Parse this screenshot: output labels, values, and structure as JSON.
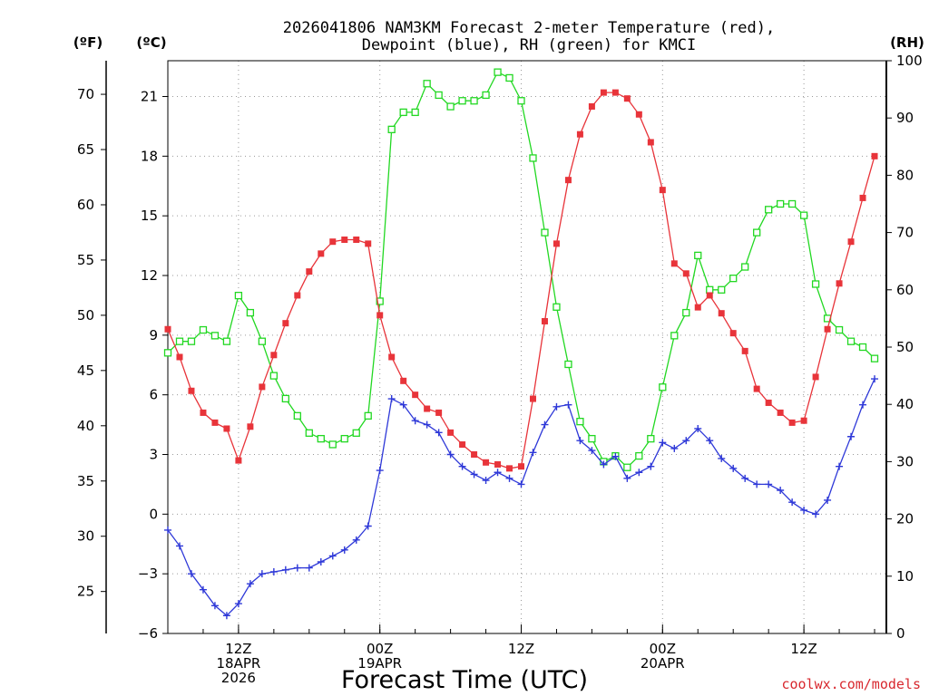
{
  "chart_data": {
    "type": "line",
    "title_lines": [
      "2026041806 NAM3KM Forecast 2-meter Temperature (red),",
      "Dewpoint (blue), RH (green) for KMCI"
    ],
    "xlabel": "Forecast Time (UTC)",
    "credit": "coolwx.com/models",
    "x_range_hours": [
      0,
      61
    ],
    "x_ticks": [
      {
        "hour": 6,
        "lines": [
          "12Z",
          "18APR",
          "2026"
        ]
      },
      {
        "hour": 18,
        "lines": [
          "00Z",
          "19APR"
        ]
      },
      {
        "hour": 30,
        "lines": [
          "12Z"
        ]
      },
      {
        "hour": 42,
        "lines": [
          "00Z",
          "20APR"
        ]
      },
      {
        "hour": 54,
        "lines": [
          "12Z"
        ]
      }
    ],
    "axes": {
      "fahrenheit": {
        "unit_label": "(ºF)",
        "ticks": [
          25,
          30,
          35,
          40,
          45,
          50,
          55,
          60,
          65,
          70
        ]
      },
      "celsius": {
        "unit_label": "(ºC)",
        "range": [
          -6,
          22.8
        ],
        "ticks": [
          "−6",
          "−3",
          "0",
          "3",
          "6",
          "9",
          "12",
          "15",
          "18",
          "21"
        ]
      },
      "rh": {
        "unit_label": "(RH)",
        "range": [
          0,
          100
        ],
        "ticks": [
          0,
          10,
          20,
          30,
          40,
          50,
          60,
          70,
          80,
          90,
          100
        ]
      }
    },
    "series": [
      {
        "name": "2-meter Temperature",
        "color": "#e8343a",
        "axis": "celsius",
        "marker": "filled-square",
        "values": [
          9.3,
          7.9,
          6.2,
          5.1,
          4.6,
          4.3,
          2.7,
          4.4,
          6.4,
          8.0,
          9.6,
          11.0,
          12.2,
          13.1,
          13.7,
          13.8,
          13.8,
          13.6,
          10.0,
          7.9,
          6.7,
          6.0,
          5.3,
          5.1,
          4.1,
          3.5,
          3.0,
          2.6,
          2.5,
          2.3,
          2.4,
          5.8,
          9.7,
          13.6,
          16.8,
          19.1,
          20.5,
          21.2,
          21.2,
          20.9,
          20.1,
          18.7,
          16.3,
          12.6,
          12.1,
          10.4,
          11.0,
          10.1,
          9.1,
          8.2,
          6.3,
          5.6,
          5.1,
          4.6,
          4.7,
          6.9,
          9.3,
          11.6,
          13.7,
          15.9,
          18.0
        ]
      },
      {
        "name": "Dewpoint",
        "color": "#2e38d8",
        "axis": "celsius",
        "marker": "plus",
        "values": [
          -0.8,
          -1.6,
          -3.0,
          -3.8,
          -4.6,
          -5.1,
          -4.5,
          -3.5,
          -3.0,
          -2.9,
          -2.8,
          -2.7,
          -2.7,
          -2.4,
          -2.1,
          -1.8,
          -1.3,
          -0.6,
          2.2,
          5.8,
          5.5,
          4.7,
          4.5,
          4.1,
          3.0,
          2.4,
          2.0,
          1.7,
          2.1,
          1.8,
          1.5,
          3.1,
          4.5,
          5.4,
          5.5,
          3.7,
          3.2,
          2.5,
          2.9,
          1.8,
          2.1,
          2.4,
          3.6,
          3.3,
          3.7,
          4.3,
          3.7,
          2.8,
          2.3,
          1.8,
          1.5,
          1.5,
          1.2,
          0.6,
          0.2,
          0.0,
          0.7,
          2.4,
          3.9,
          5.5,
          6.8
        ]
      },
      {
        "name": "RH",
        "color": "#22d822",
        "axis": "rh",
        "marker": "open-square",
        "values": [
          49,
          51,
          51,
          53,
          52,
          51,
          59,
          56,
          51,
          45,
          41,
          38,
          35,
          34,
          33,
          34,
          35,
          38,
          58,
          88,
          91,
          91,
          96,
          94,
          92,
          93,
          93,
          94,
          98,
          97,
          93,
          83,
          70,
          57,
          47,
          37,
          34,
          30,
          31,
          29,
          31,
          34,
          43,
          52,
          56,
          66,
          60,
          60,
          62,
          64,
          70,
          74,
          75,
          75,
          73,
          61,
          55,
          53,
          51,
          50,
          48
        ]
      }
    ]
  }
}
